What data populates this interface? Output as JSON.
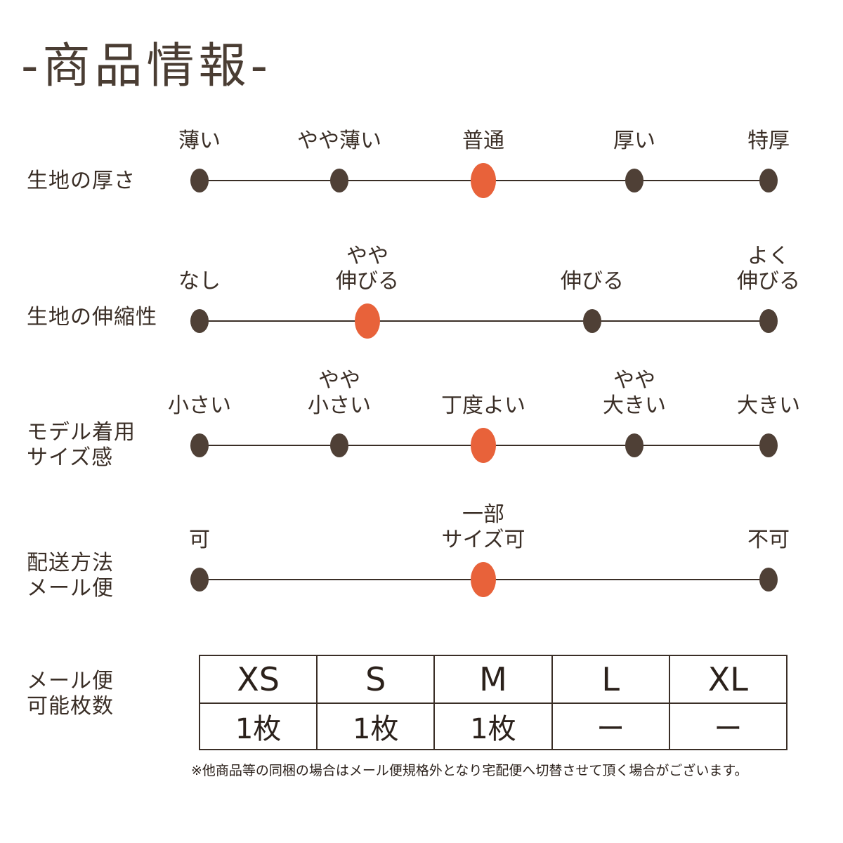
{
  "title": "-商品情報-",
  "scales": [
    {
      "label": "生地の厚さ",
      "options": [
        "薄い",
        "やや薄い",
        "普通",
        "厚い",
        "特厚"
      ],
      "selected": "普通"
    },
    {
      "label": "生地の伸縮性",
      "options": [
        "なし",
        "やや\n伸びる",
        "伸びる",
        "よく\n伸びる"
      ],
      "selected": "やや\n伸びる"
    },
    {
      "label": "モデル着用\nサイズ感",
      "options": [
        "小さい",
        "やや\n小さい",
        "丁度よい",
        "やや\n大きい",
        "大きい"
      ],
      "selected": "丁度よい"
    },
    {
      "label": "配送方法\nメール便",
      "options": [
        "可",
        "一部\nサイズ可",
        "不可"
      ],
      "selected": "一部\nサイズ可"
    }
  ],
  "mail_table": {
    "label": "メール便\n可能枚数",
    "columns": [
      "XS",
      "S",
      "M",
      "L",
      "XL"
    ],
    "counts": [
      "1枚",
      "1枚",
      "1枚",
      "ー",
      "ー"
    ]
  },
  "note": "※他商品等の同梱の場合はメール便規格外となり宅配便へ切替させて頂く場合がございます。",
  "colors": {
    "selected_dot": "#e8623a",
    "dot": "#4f4036",
    "text": "#3a2e26"
  }
}
